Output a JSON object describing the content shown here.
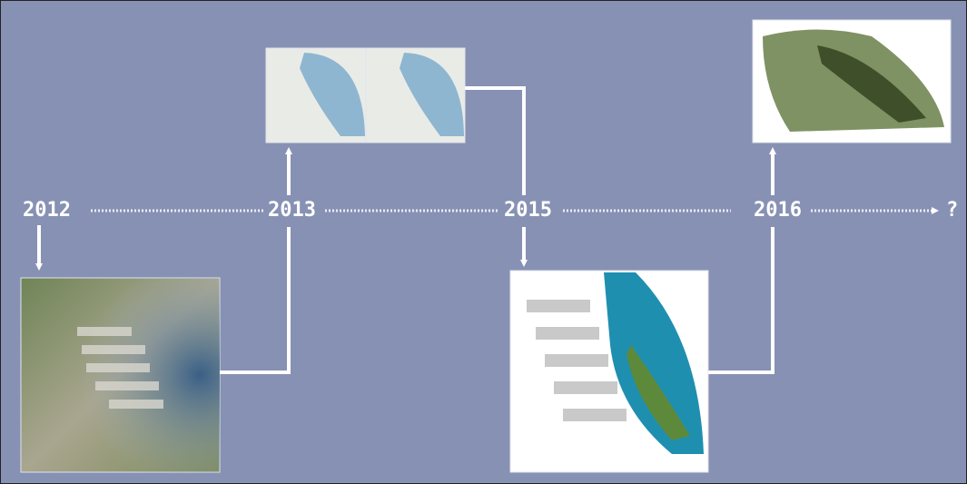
{
  "timeline": {
    "labels": [
      "2012",
      "2013",
      "2015",
      "2016",
      "?"
    ]
  }
}
